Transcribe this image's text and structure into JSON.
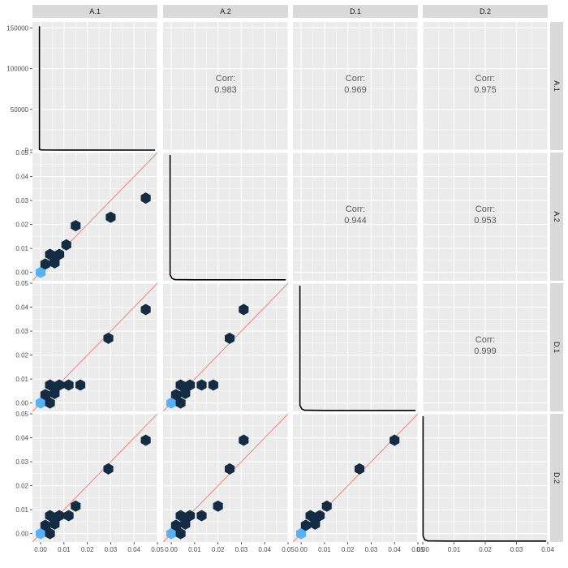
{
  "chart_data": {
    "type": "scatter",
    "subtype": "pairs-matrix-hexbin",
    "variables": [
      "A.1",
      "A.2",
      "D.1",
      "D.2"
    ],
    "corr_label": "Corr:",
    "correlations": [
      {
        "row": 0,
        "col": 1,
        "value": "0.983"
      },
      {
        "row": 0,
        "col": 2,
        "value": "0.969"
      },
      {
        "row": 0,
        "col": 3,
        "value": "0.975"
      },
      {
        "row": 1,
        "col": 2,
        "value": "0.944"
      },
      {
        "row": 1,
        "col": 3,
        "value": "0.953"
      },
      {
        "row": 2,
        "col": 3,
        "value": "0.999"
      }
    ],
    "x_ticks": [
      [
        "0.00",
        "0.01",
        "0.02",
        "0.03",
        "0.04",
        "0.05"
      ],
      [
        "0.00",
        "0.01",
        "0.02",
        "0.03",
        "0.04",
        "0.05"
      ],
      [
        "0.00",
        "0.01",
        "0.02",
        "0.03",
        "0.04",
        "0.05"
      ],
      [
        "0.00",
        "0.01",
        "0.02",
        "0.03",
        "0.04"
      ]
    ],
    "y_ticks": [
      [
        "0",
        "50000",
        "100000",
        "150000"
      ],
      [
        "0.00",
        "0.01",
        "0.02",
        "0.03",
        "0.04",
        "0.05"
      ],
      [
        "0.00",
        "0.01",
        "0.02",
        "0.03",
        "0.04",
        "0.05"
      ],
      [
        "0.00",
        "0.01",
        "0.02",
        "0.03",
        "0.04",
        "0.05"
      ]
    ],
    "x_ranges": [
      [
        -0.0035,
        0.05
      ],
      [
        -0.0035,
        0.05
      ],
      [
        -0.0035,
        0.05
      ],
      [
        0.0,
        0.04
      ]
    ],
    "y_range": [
      -0.0035,
      0.05
    ],
    "density_ylim": [
      0,
      155000
    ],
    "identity_line_color": "#f8766d",
    "hex_color_dense": "#132b43",
    "hex_color_sparse": "#56b1f7",
    "hexbin_points": [
      {
        "row": 1,
        "col": 0,
        "points": [
          [
            0.0,
            0.0,
            1
          ],
          [
            0.002,
            0.0035,
            0
          ],
          [
            0.004,
            0.0075,
            0
          ],
          [
            0.006,
            0.004,
            0
          ],
          [
            0.008,
            0.0075,
            0
          ],
          [
            0.011,
            0.0115,
            0
          ],
          [
            0.015,
            0.0195,
            0
          ],
          [
            0.03,
            0.023,
            0
          ],
          [
            0.045,
            0.031,
            0
          ]
        ]
      },
      {
        "row": 2,
        "col": 0,
        "points": [
          [
            0.0,
            0.0,
            1
          ],
          [
            0.002,
            0.0035,
            0
          ],
          [
            0.004,
            0.0075,
            0
          ],
          [
            0.004,
            0.0,
            0
          ],
          [
            0.006,
            0.004,
            0
          ],
          [
            0.008,
            0.0075,
            0
          ],
          [
            0.012,
            0.0075,
            0
          ],
          [
            0.017,
            0.0075,
            0
          ],
          [
            0.029,
            0.027,
            0
          ],
          [
            0.045,
            0.039,
            0
          ]
        ]
      },
      {
        "row": 3,
        "col": 0,
        "points": [
          [
            0.0,
            0.0,
            1
          ],
          [
            0.002,
            0.0035,
            0
          ],
          [
            0.004,
            0.0075,
            0
          ],
          [
            0.004,
            0.0,
            0
          ],
          [
            0.006,
            0.004,
            0
          ],
          [
            0.008,
            0.0075,
            0
          ],
          [
            0.012,
            0.0075,
            0
          ],
          [
            0.015,
            0.0115,
            0
          ],
          [
            0.029,
            0.027,
            0
          ],
          [
            0.045,
            0.039,
            0
          ]
        ]
      },
      {
        "row": 2,
        "col": 1,
        "points": [
          [
            0.0,
            0.0,
            1
          ],
          [
            0.002,
            0.0035,
            0
          ],
          [
            0.004,
            0.0075,
            0
          ],
          [
            0.004,
            0.0,
            0
          ],
          [
            0.006,
            0.004,
            0
          ],
          [
            0.008,
            0.0075,
            0
          ],
          [
            0.013,
            0.0075,
            0
          ],
          [
            0.018,
            0.0075,
            0
          ],
          [
            0.025,
            0.027,
            0
          ],
          [
            0.031,
            0.039,
            0
          ]
        ]
      },
      {
        "row": 3,
        "col": 1,
        "points": [
          [
            0.0,
            0.0,
            1
          ],
          [
            0.002,
            0.0035,
            0
          ],
          [
            0.004,
            0.0075,
            0
          ],
          [
            0.004,
            0.0,
            0
          ],
          [
            0.006,
            0.004,
            0
          ],
          [
            0.008,
            0.0075,
            0
          ],
          [
            0.013,
            0.0075,
            0
          ],
          [
            0.02,
            0.0115,
            0
          ],
          [
            0.025,
            0.027,
            0
          ],
          [
            0.031,
            0.039,
            0
          ]
        ]
      },
      {
        "row": 3,
        "col": 2,
        "points": [
          [
            0.0,
            0.0,
            1
          ],
          [
            0.002,
            0.0035,
            0
          ],
          [
            0.004,
            0.0075,
            0
          ],
          [
            0.006,
            0.004,
            0
          ],
          [
            0.008,
            0.0075,
            0
          ],
          [
            0.011,
            0.0115,
            0
          ],
          [
            0.025,
            0.027,
            0
          ],
          [
            0.04,
            0.039,
            0
          ]
        ]
      }
    ],
    "density_curves": [
      {
        "row": 0,
        "col": 0,
        "points": [
          [
            -0.0005,
            152000
          ],
          [
            -0.0005,
            800
          ],
          [
            0.0002,
            300
          ],
          [
            0.0015,
            150
          ],
          [
            0.01,
            30
          ],
          [
            0.049,
            0
          ]
        ]
      },
      {
        "row": 1,
        "col": 1,
        "points": [
          [
            -0.0005,
            0.049
          ],
          [
            -0.0005,
            -0.001
          ],
          [
            0.0003,
            -0.0025
          ],
          [
            0.0015,
            -0.003
          ],
          [
            0.01,
            -0.0031
          ],
          [
            0.049,
            -0.0031
          ]
        ]
      },
      {
        "row": 2,
        "col": 2,
        "points": [
          [
            -0.0005,
            0.049
          ],
          [
            -0.0005,
            -0.001
          ],
          [
            0.0003,
            -0.0025
          ],
          [
            0.0015,
            -0.003
          ],
          [
            0.01,
            -0.0031
          ],
          [
            0.049,
            -0.0031
          ]
        ]
      },
      {
        "row": 3,
        "col": 3,
        "points": [
          [
            0.0001,
            0.049
          ],
          [
            0.0001,
            -0.001
          ],
          [
            0.0006,
            -0.0025
          ],
          [
            0.0016,
            -0.003
          ],
          [
            0.008,
            -0.0031
          ],
          [
            0.0395,
            -0.0031
          ]
        ]
      }
    ],
    "grid": true
  }
}
